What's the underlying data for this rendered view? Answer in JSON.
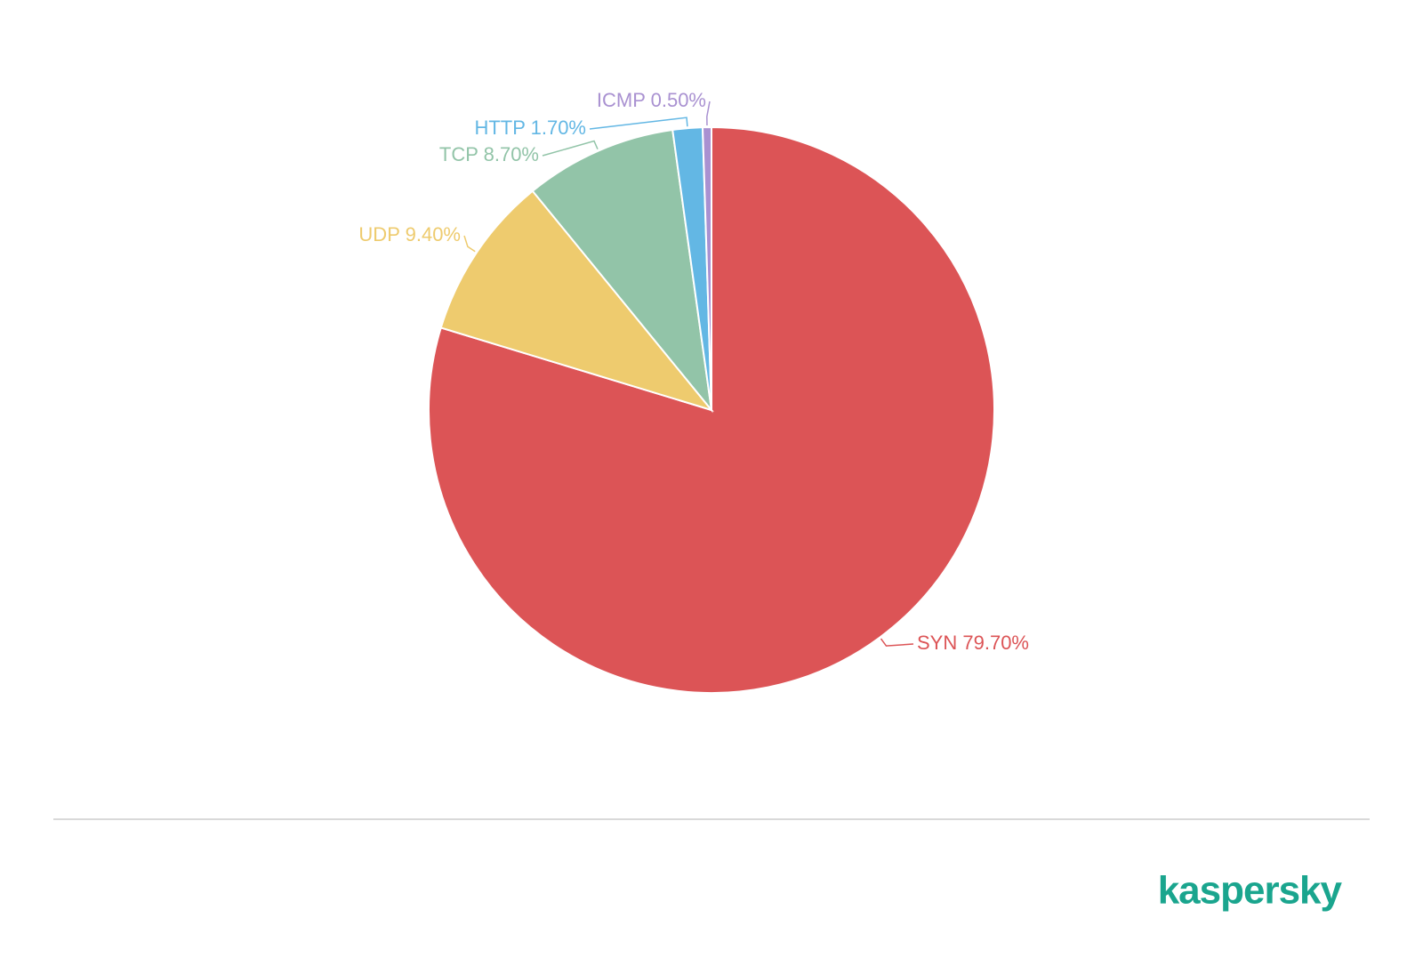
{
  "chart_data": {
    "type": "pie",
    "categories": [
      "SYN",
      "UDP",
      "TCP",
      "HTTP",
      "ICMP"
    ],
    "values": [
      79.7,
      9.4,
      8.7,
      1.7,
      0.5
    ],
    "value_labels": [
      "79.70%",
      "9.40%",
      "8.70%",
      "1.70%",
      "0.50%"
    ],
    "colors": [
      "#dc5456",
      "#eecb6e",
      "#92c4a8",
      "#63b7e4",
      "#a991d1"
    ]
  },
  "logo": "kaspersky"
}
